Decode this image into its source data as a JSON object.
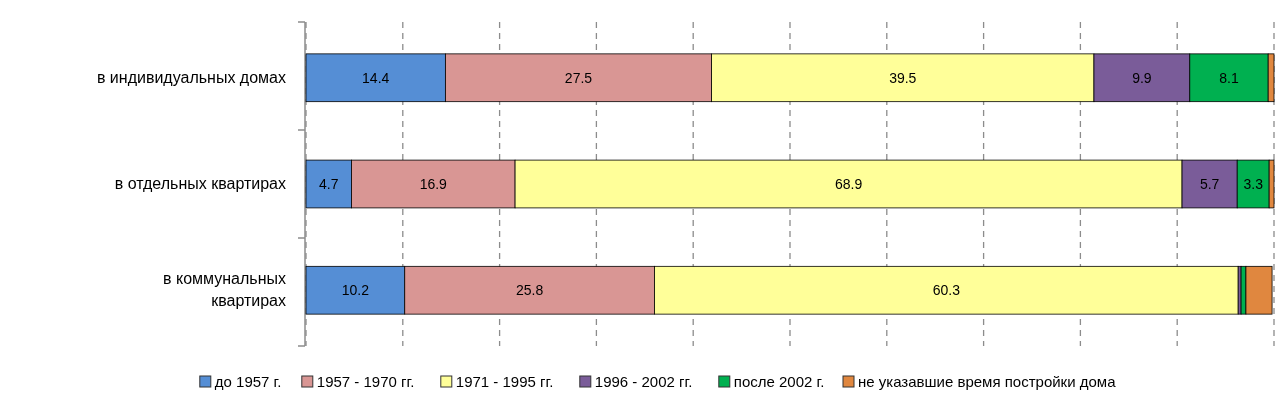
{
  "chart_data": {
    "type": "bar",
    "orientation": "horizontal",
    "stacked": true,
    "categories": [
      "в индивидуальных домах",
      "в отдельных квартирах",
      "в коммунальных квартирах"
    ],
    "xlim": [
      0,
      100
    ],
    "xticks": [
      {
        "value": 0,
        "label": null
      },
      {
        "value": 10,
        "label": null
      },
      {
        "value": 20,
        "label": null
      },
      {
        "value": 30,
        "label": null
      },
      {
        "value": 40,
        "label": null
      },
      {
        "value": 50,
        "label": null
      },
      {
        "value": 60,
        "label": null
      },
      {
        "value": 70,
        "label": null
      },
      {
        "value": 80,
        "label": null
      },
      {
        "value": 90,
        "label": null
      },
      {
        "value": 100,
        "label": null
      }
    ],
    "tick_labels": "y",
    "grid": "x",
    "legend": "bottom",
    "series": [
      {
        "name": "до 1957 г.",
        "color": "#558ed5",
        "values": [
          14.4,
          4.7,
          10.2
        ],
        "value_labels": [
          "14.4",
          "4.7",
          "10.2"
        ]
      },
      {
        "name": "1957 - 1970 гг.",
        "color": "#d99694",
        "values": [
          27.5,
          16.9,
          25.8
        ],
        "value_labels": [
          "27.5",
          "16.9",
          "25.8"
        ]
      },
      {
        "name": "1971 - 1995 гг.",
        "color": "#ffff99",
        "values": [
          39.5,
          68.9,
          60.3
        ],
        "value_labels": [
          "39.5",
          "68.9",
          "60.3"
        ]
      },
      {
        "name": "1996 - 2002 гг.",
        "color": "#7a5c99",
        "values": [
          9.9,
          5.7,
          0.3
        ],
        "value_labels": [
          "9.9",
          "5.7",
          null
        ]
      },
      {
        "name": "после 2002 г.",
        "color": "#00b050",
        "values": [
          8.1,
          3.3,
          0.5
        ],
        "value_labels": [
          "8.1",
          "3.3",
          null
        ]
      },
      {
        "name": "не указавшие время постройки дома",
        "color": "#e0873f",
        "values": [
          0.6,
          0.5,
          2.7
        ],
        "value_labels": [
          null,
          null,
          null
        ]
      }
    ]
  }
}
